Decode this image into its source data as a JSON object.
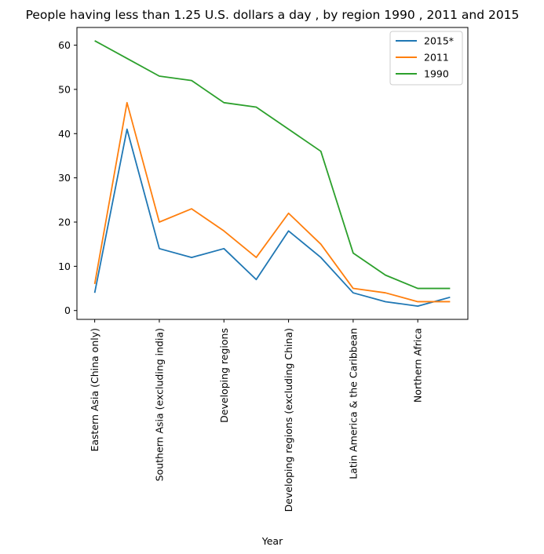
{
  "chart_data": {
    "type": "line",
    "title": "People having less than 1.25 U.S. dollars a day , by region 1990 , 2011 and 2015",
    "xlabel": "Year",
    "ylabel": "",
    "ylim": [
      -2,
      64
    ],
    "yticks": [
      0,
      10,
      20,
      30,
      40,
      50,
      60
    ],
    "tick_labels": [
      "Eastern Asia (China only)",
      "Southern Asia (excluding india)",
      "Developing regions",
      "Developing regions (excluding China)",
      "Latin America & the Caribbean",
      "Northern Africa"
    ],
    "tick_positions": [
      0,
      2,
      4,
      6,
      8,
      10
    ],
    "x": [
      0,
      1,
      2,
      3,
      4,
      5,
      6,
      7,
      8,
      9,
      10,
      11
    ],
    "series": [
      {
        "name": "2015*",
        "color": "#1f77b4",
        "values": [
          4,
          41,
          14,
          12,
          14,
          7,
          18,
          12,
          4,
          2,
          1,
          3
        ]
      },
      {
        "name": "2011",
        "color": "#ff7f0e",
        "values": [
          6,
          47,
          20,
          23,
          18,
          12,
          22,
          15,
          5,
          4,
          2,
          2
        ]
      },
      {
        "name": "1990",
        "color": "#2ca02c",
        "values": [
          61,
          57,
          53,
          52,
          47,
          46,
          41,
          36,
          13,
          8,
          5,
          5
        ]
      }
    ],
    "grid": false,
    "legend_position": "top-right"
  }
}
